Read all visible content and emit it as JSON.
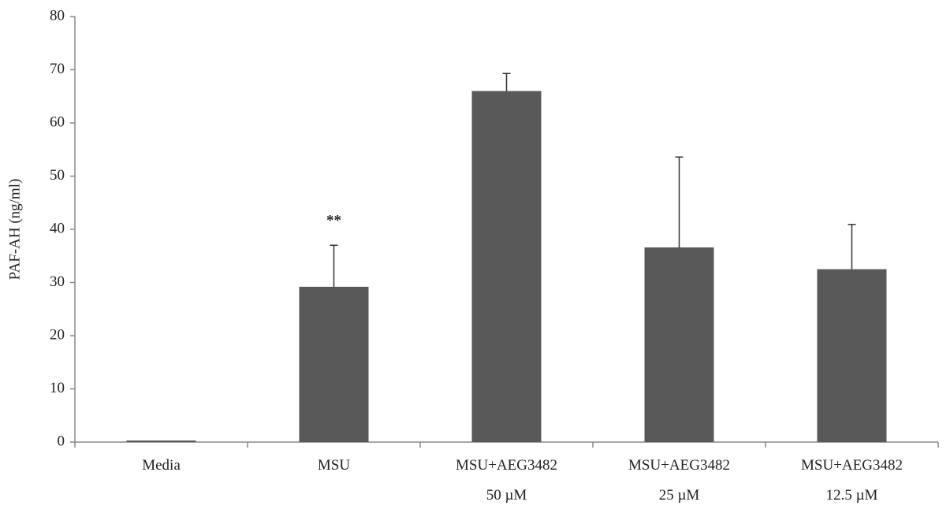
{
  "chart_data": {
    "type": "bar",
    "y_label": "PAF-AH (ng/ml)",
    "categories": [
      "Media",
      "MSU",
      "MSU+AEG3482\n50 µM",
      "MSU+AEG3482\n25 µM",
      "MSU+AEG3482\n12.5 µM"
    ],
    "values": [
      0.3,
      29.2,
      66,
      36.6,
      32.5
    ],
    "errors": [
      0,
      7.8,
      3.3,
      17,
      8.4
    ],
    "color": "#595959",
    "ylim": [
      0,
      80
    ],
    "yticks": [
      0,
      10,
      20,
      30,
      40,
      50,
      60,
      70,
      80
    ],
    "grid": false,
    "annotations": [
      {
        "text": "**",
        "category": "MSU"
      }
    ]
  }
}
